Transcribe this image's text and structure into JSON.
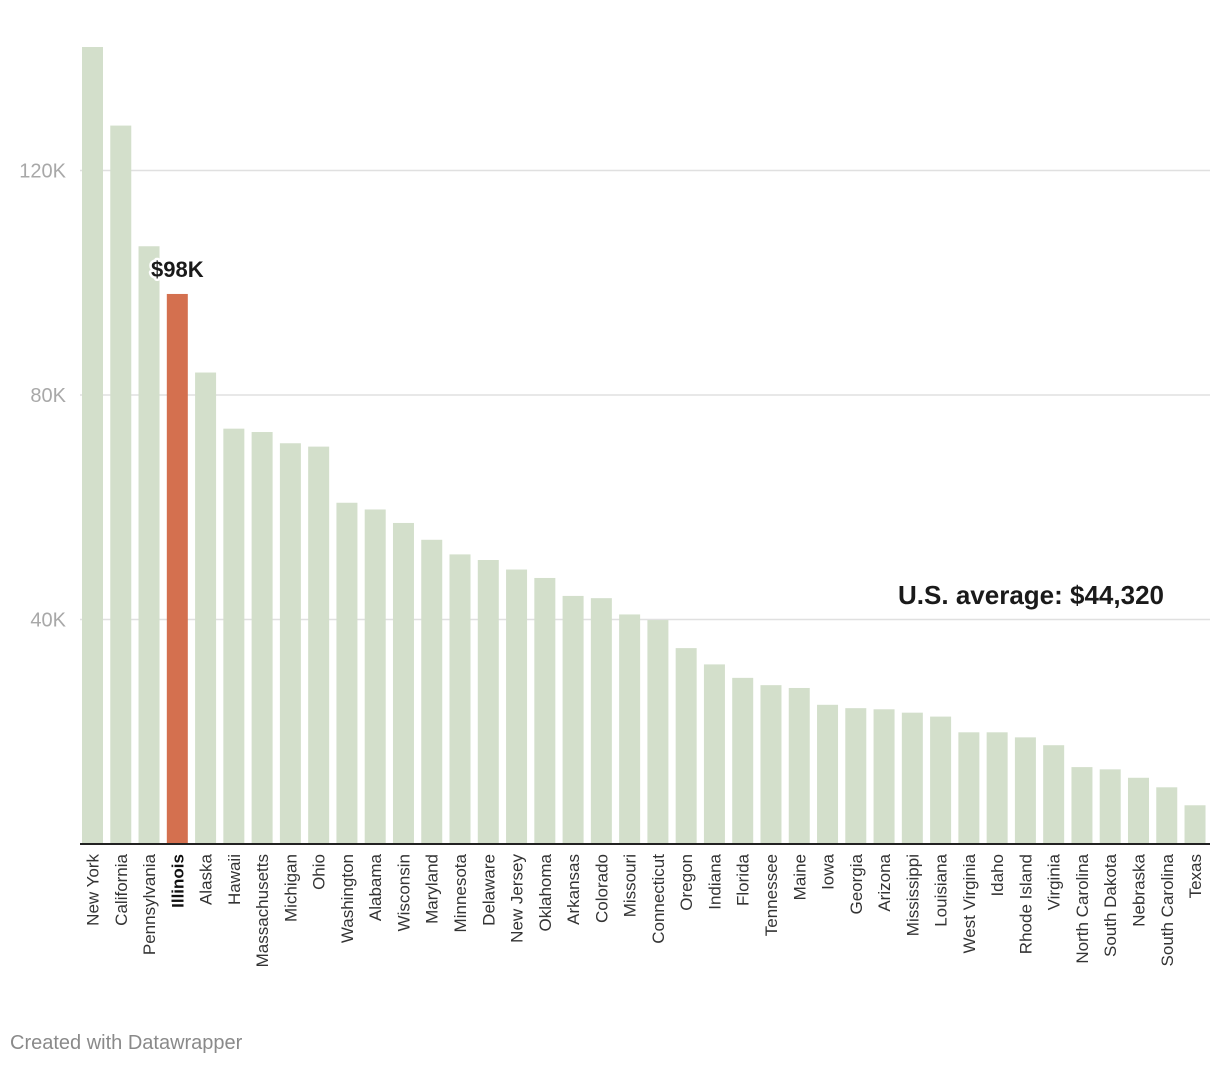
{
  "chart_data": {
    "type": "bar",
    "title": "",
    "xlabel": "",
    "ylabel": "",
    "ylim": [
      0,
      142000
    ],
    "yticks": [
      40000,
      80000,
      120000
    ],
    "ytick_labels": [
      "40K",
      "80K",
      "120K"
    ],
    "grid": true,
    "categories": [
      "New York",
      "California",
      "Pennsylvania",
      "Illinois",
      "Alaska",
      "Hawaii",
      "Massachusetts",
      "Michigan",
      "Ohio",
      "Washington",
      "Alabama",
      "Wisconsin",
      "Maryland",
      "Minnesota",
      "Delaware",
      "New Jersey",
      "Oklahoma",
      "Arkansas",
      "Colorado",
      "Missouri",
      "Connecticut",
      "Oregon",
      "Indiana",
      "Florida",
      "Tennessee",
      "Maine",
      "Iowa",
      "Georgia",
      "Arizona",
      "Mississippi",
      "Louisiana",
      "West Virginia",
      "Idaho",
      "Rhode Island",
      "Virginia",
      "North Carolina",
      "South Dakota",
      "Nebraska",
      "South Carolina",
      "Texas"
    ],
    "values": [
      142000,
      128000,
      106500,
      98000,
      84000,
      74000,
      73400,
      71400,
      70800,
      60800,
      59600,
      57200,
      54200,
      51600,
      50600,
      48900,
      47400,
      44200,
      43800,
      40900,
      39900,
      34900,
      32000,
      29600,
      28300,
      27800,
      24800,
      24200,
      24000,
      23400,
      22700,
      19900,
      19900,
      19000,
      17600,
      13700,
      13300,
      11800,
      10100,
      6900
    ],
    "highlight": {
      "category": "Illinois",
      "label": "$98K",
      "color": "#d4704f"
    },
    "reference_line": {
      "value": 44320,
      "label": "U.S. average: $44,320"
    },
    "bar_color": "#d3dfcb",
    "gridline_color": "#e0e0e0",
    "axis_color": "#222222"
  },
  "footer": {
    "credit": "Created with Datawrapper"
  }
}
